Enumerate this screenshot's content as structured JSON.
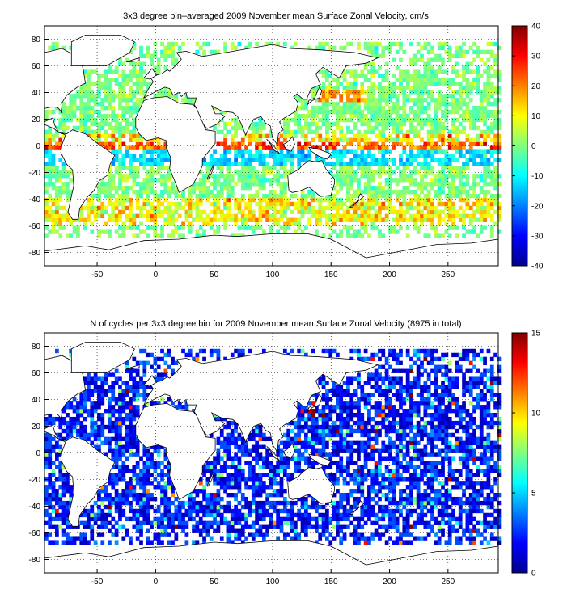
{
  "chart_data": [
    {
      "type": "heatmap",
      "title": "3x3 degree bin–averaged 2009 November mean Surface Zonal Velocity, cm/s",
      "xlim": [
        -95,
        293
      ],
      "ylim": [
        -90,
        90
      ],
      "xticks": [
        -50,
        0,
        50,
        100,
        150,
        200,
        250
      ],
      "yticks": [
        -80,
        -60,
        -40,
        -20,
        0,
        20,
        40,
        60,
        80
      ],
      "grid": true,
      "bin_size_deg": 3,
      "colorbar": {
        "min": -40,
        "max": 40,
        "ticks": [
          -40,
          -30,
          -20,
          -10,
          0,
          10,
          20,
          30,
          40
        ],
        "colormap": "jet"
      },
      "value_distribution": "mostly near 0 (green/cyan/yellow); strong eastward (red, >30) bands along the equator and near 40-55S; westward (blue) bands just off the equator"
    },
    {
      "type": "heatmap",
      "title": "N of cycles per 3x3 degree bin for 2009 November mean Surface Zonal Velocity (8975 in total)",
      "xlim": [
        -95,
        293
      ],
      "ylim": [
        -90,
        90
      ],
      "xticks": [
        -50,
        0,
        50,
        100,
        150,
        200,
        250
      ],
      "yticks": [
        -80,
        -60,
        -40,
        -20,
        0,
        20,
        40,
        60,
        80
      ],
      "grid": true,
      "bin_size_deg": 3,
      "total_cycles": 8975,
      "colorbar": {
        "min": 0,
        "max": 15,
        "ticks": [
          0,
          5,
          10,
          15
        ],
        "colormap": "jet"
      },
      "value_distribution": "mostly 1-4 cycles per bin (blue); occasional 5-9 (cyan/yellow); few bins of 12-15 (red) e.g. near Japan and the Arabian Sea"
    }
  ]
}
